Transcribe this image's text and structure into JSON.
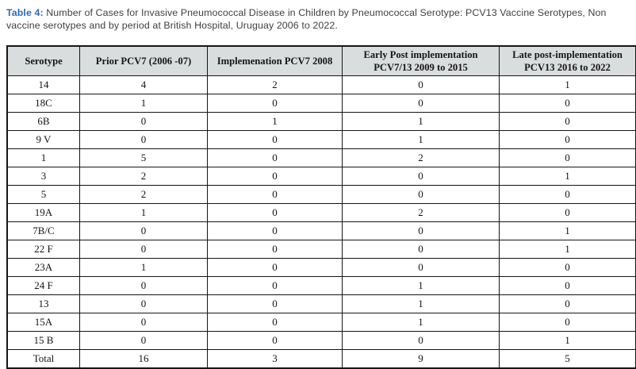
{
  "caption": {
    "label": "Table 4:",
    "text": " Number of Cases for Invasive Pneumococcal Disease in Children by Pneumococcal Serotype: PCV13 Vaccine Serotypes, Non vaccine serotypes and by period at British Hospital, Uruguay 2006 to 2022.",
    "accent_color": "#2b6cb5"
  },
  "table": {
    "columns": [
      "Serotype",
      "Prior PCV7 (2006 -07)",
      "Implemenation PCV7 2008",
      "Early Post implementation PCV7/13 2009 to 2015",
      "Late post-implementation PCV13 2016 to 2022"
    ],
    "rows": [
      [
        "14",
        "4",
        "2",
        "0",
        "1"
      ],
      [
        "18C",
        "1",
        "0",
        "0",
        "0"
      ],
      [
        "6B",
        "0",
        "1",
        "1",
        "0"
      ],
      [
        "9 V",
        "0",
        "0",
        "1",
        "0"
      ],
      [
        "1",
        "5",
        "0",
        "2",
        "0"
      ],
      [
        "3",
        "2",
        "0",
        "0",
        "1"
      ],
      [
        "5",
        "2",
        "0",
        "0",
        "0"
      ],
      [
        "19A",
        "1",
        "0",
        "2",
        "0"
      ],
      [
        "7B/C",
        "0",
        "0",
        "0",
        "1"
      ],
      [
        "22 F",
        "0",
        "0",
        "0",
        "1"
      ],
      [
        "23A",
        "1",
        "0",
        "0",
        "0"
      ],
      [
        "24 F",
        "0",
        "0",
        "1",
        "0"
      ],
      [
        "13",
        "0",
        "0",
        "1",
        "0"
      ],
      [
        "15A",
        "0",
        "0",
        "1",
        "0"
      ],
      [
        "15 B",
        "0",
        "0",
        "0",
        "1"
      ],
      [
        "Total",
        "16",
        "3",
        "9",
        "5"
      ]
    ],
    "header_bg": "#d9dddd",
    "border_color": "#151515"
  }
}
